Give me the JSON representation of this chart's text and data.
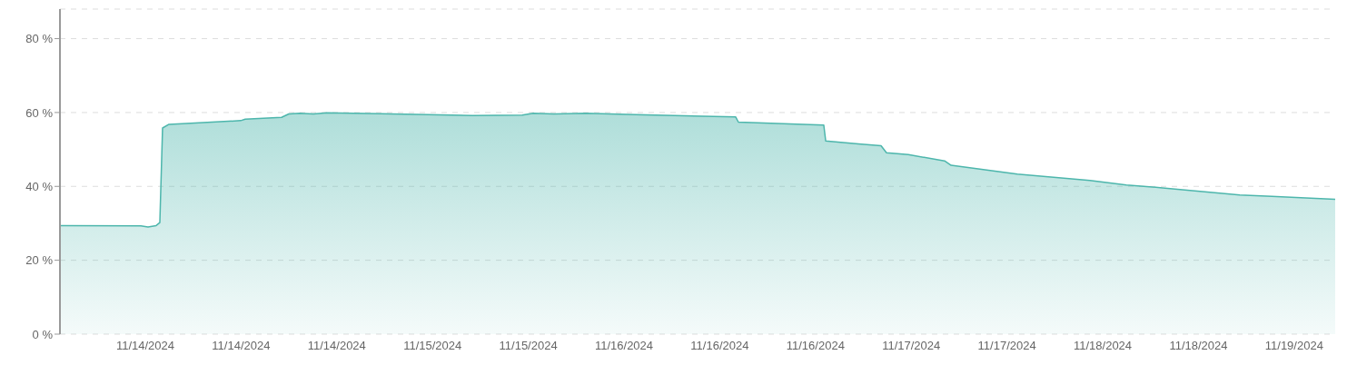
{
  "chart_data": {
    "type": "area",
    "color": "#4db6ac",
    "x": [
      "2024-11-13T16:05",
      "2024-11-14T00:32",
      "2024-11-14T01:17",
      "2024-11-14T02:08",
      "2024-11-14T02:31",
      "2024-11-14T02:48",
      "2024-11-14T03:28",
      "2024-11-14T05:16",
      "2024-11-14T10:58",
      "2024-11-14T11:26",
      "2024-11-14T15:14",
      "2024-11-14T15:59",
      "2024-11-14T17:08",
      "2024-11-14T18:33",
      "2024-11-14T19:59",
      "2024-11-15T01:40",
      "2024-11-15T11:10",
      "2024-11-15T16:22",
      "2024-11-15T17:31",
      "2024-11-15T19:41",
      "2024-11-15T23:01",
      "2024-11-16T04:14",
      "2024-11-16T14:40",
      "2024-11-16T14:57",
      "2024-11-16T20:22",
      "2024-11-16T23:52",
      "2024-11-17T00:04",
      "2024-11-17T03:29",
      "2024-11-17T05:51",
      "2024-11-17T06:25",
      "2024-11-17T08:42",
      "2024-11-17T12:29",
      "2024-11-17T13:10",
      "2024-11-17T20:05",
      "2024-11-18T03:40",
      "2024-11-18T07:28",
      "2024-11-18T11:16",
      "2024-11-18T19:19",
      "2024-11-18T22:39",
      "2024-11-19T05:17"
    ],
    "values": [
      29.4,
      29.3,
      29.0,
      29.4,
      30.2,
      55.8,
      56.8,
      57.0,
      57.8,
      58.2,
      58.7,
      59.6,
      59.8,
      59.6,
      59.9,
      59.7,
      59.2,
      59.3,
      59.8,
      59.6,
      59.8,
      59.4,
      58.8,
      57.4,
      56.9,
      56.6,
      52.3,
      51.5,
      51.0,
      49.1,
      48.6,
      46.9,
      45.7,
      43.3,
      41.6,
      40.4,
      39.6,
      37.7,
      37.3,
      36.5
    ],
    "xlim": [
      "2024-11-13T16:05",
      "2024-11-19T05:17"
    ],
    "xticks": [
      {
        "value": "2024-11-14T01:00",
        "label": "11/14/2024"
      },
      {
        "value": "2024-11-14T11:00",
        "label": "11/14/2024"
      },
      {
        "value": "2024-11-14T21:00",
        "label": "11/14/2024"
      },
      {
        "value": "2024-11-15T07:00",
        "label": "11/15/2024"
      },
      {
        "value": "2024-11-15T17:00",
        "label": "11/15/2024"
      },
      {
        "value": "2024-11-16T03:00",
        "label": "11/16/2024"
      },
      {
        "value": "2024-11-16T13:00",
        "label": "11/16/2024"
      },
      {
        "value": "2024-11-16T23:00",
        "label": "11/16/2024"
      },
      {
        "value": "2024-11-17T09:00",
        "label": "11/17/2024"
      },
      {
        "value": "2024-11-17T19:00",
        "label": "11/17/2024"
      },
      {
        "value": "2024-11-18T05:00",
        "label": "11/18/2024"
      },
      {
        "value": "2024-11-18T15:00",
        "label": "11/18/2024"
      },
      {
        "value": "2024-11-19T01:00",
        "label": "11/19/2024"
      }
    ],
    "ylim": [
      0,
      88
    ],
    "yticks": [
      {
        "value": 0,
        "label": "0 %"
      },
      {
        "value": 20,
        "label": "20 %"
      },
      {
        "value": 40,
        "label": "40 %"
      },
      {
        "value": 60,
        "label": "60 %"
      },
      {
        "value": 80,
        "label": "80 %"
      }
    ],
    "grid": "y"
  }
}
